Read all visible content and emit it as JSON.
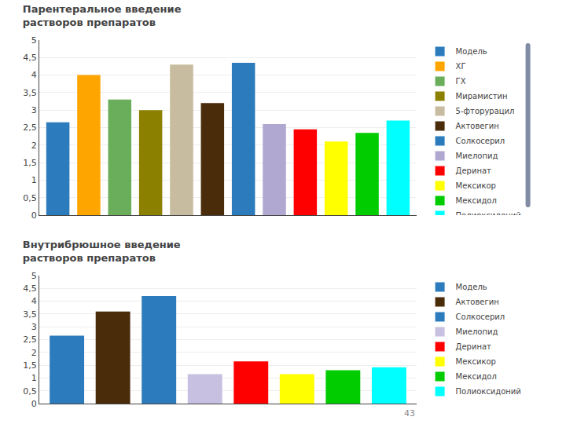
{
  "chart_data": [
    {
      "type": "bar",
      "title": "Парентеральное введение\nрастворов препаратов",
      "categories": [
        "Модель",
        "ХГ",
        "ГХ",
        "Мирамистин",
        "5-фторурацил",
        "Актовегин",
        "Солкосерил",
        "Миелопид",
        "Деринат",
        "Мексикор",
        "Мексидол",
        "Полиоксидоний"
      ],
      "values": [
        2.65,
        4.0,
        3.3,
        3.0,
        4.3,
        3.2,
        4.35,
        2.6,
        2.45,
        2.1,
        2.35,
        2.7
      ],
      "colors": [
        "#2B7BBD",
        "#FFA500",
        "#6AAD5B",
        "#8B8000",
        "#C8BCA0",
        "#4A2C0A",
        "#2B7BBD",
        "#B0A8D0",
        "#FF0000",
        "#FFFF00",
        "#00CC00",
        "#00FFFF"
      ],
      "ylim": [
        0,
        5
      ],
      "yticks": [
        0,
        {
          "value": 0.5,
          "label": "0,5"
        },
        1,
        {
          "value": 1.5,
          "label": "1,5"
        },
        2,
        {
          "value": 2.5,
          "label": "2,5"
        },
        3,
        {
          "value": 3.5,
          "label": "3,5"
        },
        4,
        {
          "value": 4.5,
          "label": "4,5"
        },
        5
      ],
      "grid": true,
      "legend": "right",
      "tick_labels": "y"
    },
    {
      "type": "bar",
      "title": "Внутрибрюшное введение\nрастворов препаратов",
      "categories": [
        "Модель",
        "Актовегин",
        "Солкосерил",
        "Миелопид",
        "Деринат",
        "Мексикор",
        "Мексидол",
        "Полиоксидоний"
      ],
      "values": [
        2.65,
        3.6,
        4.2,
        1.15,
        1.65,
        1.15,
        1.3,
        1.42
      ],
      "colors": [
        "#2B7BBD",
        "#4A2C0A",
        "#2B7BBD",
        "#C8C0E0",
        "#FF0000",
        "#FFFF00",
        "#00CC00",
        "#00FFFF"
      ],
      "ylim": [
        0,
        5
      ],
      "yticks": [
        0,
        {
          "value": 0.5,
          "label": "0,5"
        },
        1,
        {
          "value": 1.5,
          "label": "1,5"
        },
        2,
        {
          "value": 2.5,
          "label": "2,5"
        },
        3,
        {
          "value": 3.5,
          "label": "3,5"
        },
        4,
        {
          "value": 4.5,
          "label": "4,5"
        },
        5
      ],
      "grid": true,
      "legend": "right",
      "tick_labels": "y",
      "annotations": [
        "43"
      ]
    }
  ]
}
